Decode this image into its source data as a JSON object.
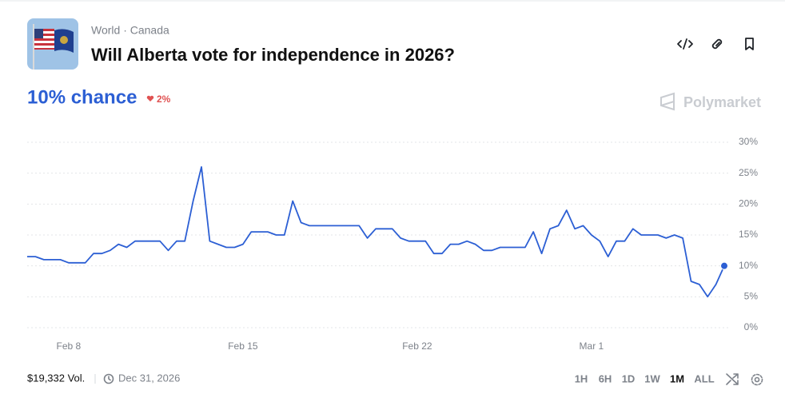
{
  "header": {
    "breadcrumb": "World · Canada",
    "title": "Will Alberta vote for independence in 2026?",
    "brand": "Polymarket"
  },
  "summary": {
    "chance": "10% chance",
    "change": "2%"
  },
  "chart_data": {
    "type": "line",
    "color": "#2c5fd4",
    "grid": true,
    "categories": [
      null,
      null,
      null,
      null,
      null,
      "Feb 8",
      null,
      null,
      null,
      null,
      null,
      null,
      null,
      null,
      null,
      null,
      null,
      null,
      null,
      null,
      null,
      null,
      null,
      null,
      null,
      null,
      "Feb 15",
      null,
      null,
      null,
      null,
      null,
      null,
      null,
      null,
      null,
      null,
      null,
      null,
      null,
      null,
      null,
      null,
      null,
      null,
      null,
      null,
      "Feb 22",
      null,
      null,
      null,
      null,
      null,
      null,
      null,
      null,
      null,
      null,
      null,
      null,
      null,
      null,
      null,
      null,
      null,
      null,
      null,
      null,
      "Mar 1",
      null,
      null,
      null,
      null,
      null,
      null,
      null,
      null,
      null,
      null,
      null,
      null,
      null,
      null,
      null,
      null
    ],
    "values": [
      11.5,
      11.5,
      11,
      11,
      11,
      10.5,
      10.5,
      10.5,
      12,
      12,
      12.5,
      13.5,
      13,
      14,
      14,
      14,
      14,
      12.5,
      14,
      14,
      20.5,
      26,
      14,
      13.5,
      13,
      13,
      13.5,
      15.5,
      15.5,
      15.5,
      15,
      15,
      20.5,
      17,
      16.5,
      16.5,
      16.5,
      16.5,
      16.5,
      16.5,
      16.5,
      14.5,
      16,
      16,
      16,
      14.5,
      14,
      14,
      14,
      12,
      12,
      13.5,
      13.5,
      14,
      13.5,
      12.5,
      12.5,
      13,
      13,
      13,
      13,
      15.5,
      12,
      16,
      16.5,
      19,
      16,
      16.5,
      15,
      14,
      11.5,
      14,
      14,
      16,
      15,
      15,
      15,
      14.5,
      15,
      14.5,
      7.5,
      7,
      5,
      7,
      10
    ],
    "ylim": [
      0,
      30
    ],
    "yticks": [
      {
        "value": 0,
        "label": "0%"
      },
      {
        "value": 5,
        "label": "5%"
      },
      {
        "value": 10,
        "label": "10%"
      },
      {
        "value": 15,
        "label": "15%"
      },
      {
        "value": 20,
        "label": "20%"
      },
      {
        "value": 25,
        "label": "25%"
      },
      {
        "value": 30,
        "label": "30%"
      }
    ]
  },
  "footer": {
    "volume": "$19,332 Vol.",
    "end_date": "Dec 31, 2026",
    "timeframes": [
      {
        "label": "1H",
        "active": false
      },
      {
        "label": "6H",
        "active": false
      },
      {
        "label": "1D",
        "active": false
      },
      {
        "label": "1W",
        "active": false
      },
      {
        "label": "1M",
        "active": true
      },
      {
        "label": "ALL",
        "active": false
      }
    ]
  }
}
